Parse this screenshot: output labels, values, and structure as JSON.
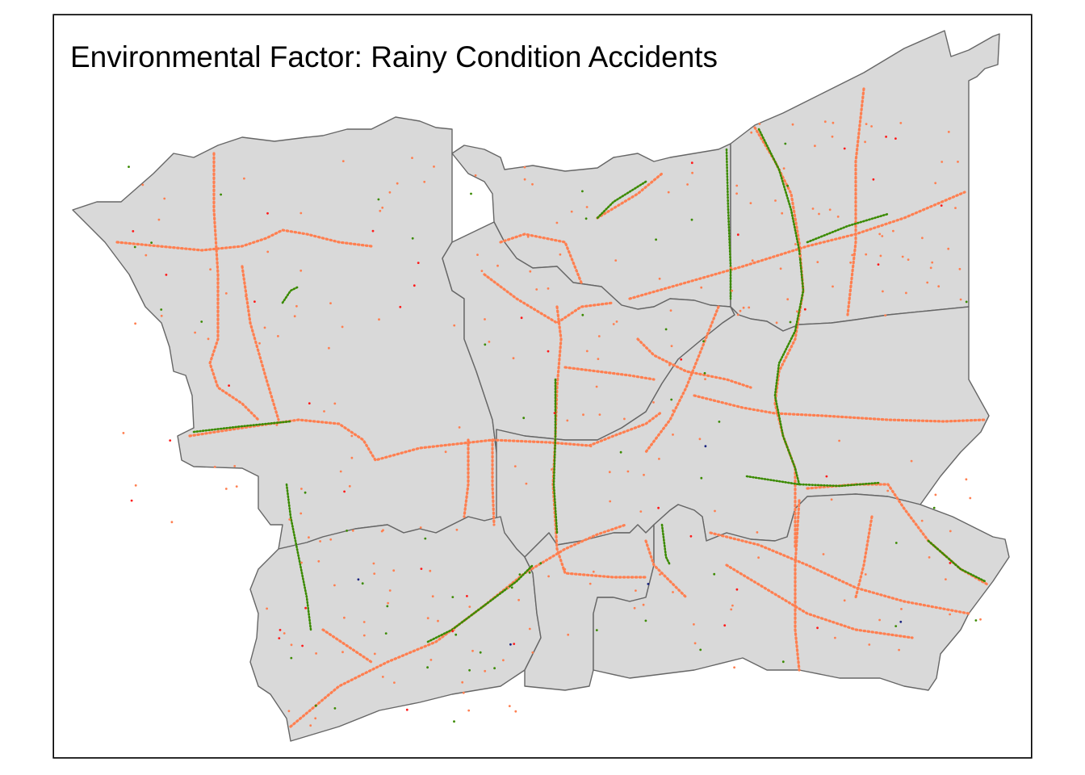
{
  "map": {
    "title": "Environmental Factor: Rainy Condition Accidents",
    "colors": {
      "land": "#d9d9d9",
      "boundary": "#666666",
      "frame": "#000000",
      "accident_common": "#ff7f50",
      "accident_severe": "#ff1a1a",
      "accident_minor": "#3a8a00",
      "accident_fatal": "#1a237e"
    },
    "legend": null
  }
}
